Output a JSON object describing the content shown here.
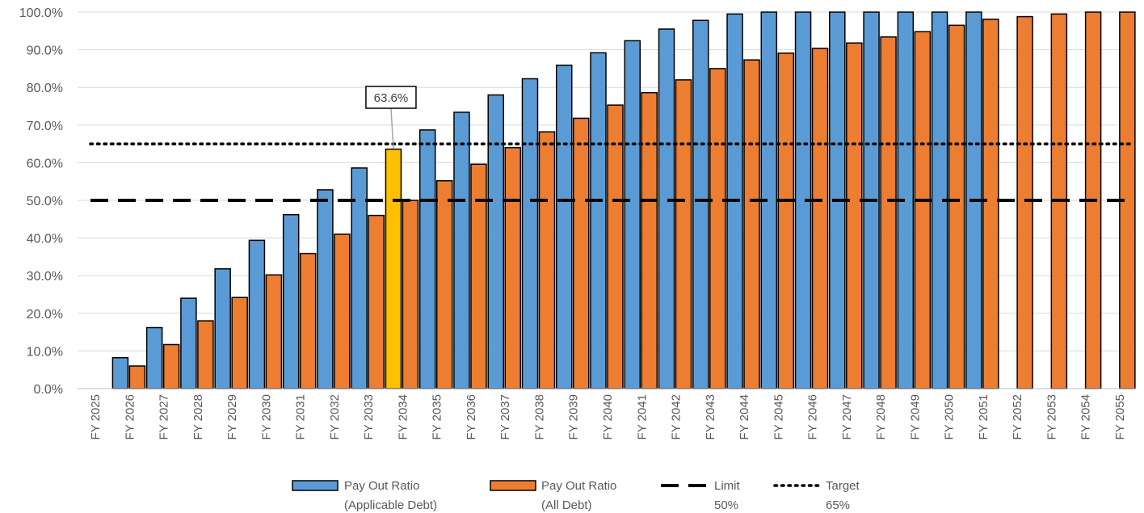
{
  "chart_data": {
    "type": "bar",
    "categories": [
      "FY 2025",
      "FY 2026",
      "FY 2027",
      "FY 2028",
      "FY 2029",
      "FY 2030",
      "FY 2031",
      "FY 2032",
      "FY 2033",
      "FY 2034",
      "FY 2035",
      "FY 2036",
      "FY 2037",
      "FY 2038",
      "FY 2039",
      "FY 2040",
      "FY 2041",
      "FY 2042",
      "FY 2043",
      "FY 2044",
      "FY 2045",
      "FY 2046",
      "FY 2047",
      "FY 2048",
      "FY 2049",
      "FY 2050",
      "FY 2051",
      "FY 2052",
      "FY 2053",
      "FY 2054",
      "FY 2055"
    ],
    "series": [
      {
        "name": "Pay Out Ratio (Applicable Debt)",
        "legend_lines": [
          "Pay Out Ratio",
          "(Applicable Debt)"
        ],
        "color": "#5B9BD5",
        "values": [
          null,
          8.2,
          16.2,
          24.0,
          31.8,
          39.4,
          46.2,
          52.8,
          58.6,
          63.6,
          68.7,
          73.4,
          78.0,
          82.3,
          85.9,
          89.2,
          92.4,
          95.5,
          97.8,
          99.5,
          100.0,
          100.0,
          100.0,
          100.0,
          100.0,
          100.0,
          100.0,
          null,
          null,
          null,
          null
        ],
        "highlight": {
          "index": 9,
          "color": "#FFC000"
        }
      },
      {
        "name": "Pay Out Ratio (All Debt)",
        "legend_lines": [
          "Pay Out Ratio",
          "(All Debt)"
        ],
        "color": "#ED7D31",
        "values": [
          null,
          6.0,
          11.7,
          18.0,
          24.2,
          30.2,
          35.9,
          41.0,
          46.0,
          50.0,
          55.2,
          59.6,
          64.0,
          68.2,
          71.8,
          75.3,
          78.6,
          82.0,
          85.0,
          87.3,
          89.1,
          90.4,
          91.8,
          93.4,
          94.8,
          96.5,
          98.1,
          98.8,
          99.5,
          100.0,
          100.0
        ]
      }
    ],
    "reference_lines": [
      {
        "name": "Limit",
        "legend_lines": [
          "Limit",
          "50%"
        ],
        "value": 50,
        "style": "dashed",
        "color": "#000000"
      },
      {
        "name": "Target",
        "legend_lines": [
          "Target",
          "65%"
        ],
        "value": 65,
        "style": "dotted",
        "color": "#000000"
      }
    ],
    "annotations": [
      {
        "text": "63.6%",
        "category": "FY 2034",
        "series": 0,
        "value": 63.6
      }
    ],
    "ylim": [
      0,
      100
    ],
    "yticks": [
      0,
      10,
      20,
      30,
      40,
      50,
      60,
      70,
      80,
      90,
      100
    ],
    "ytick_format": "%.1f%",
    "grid": true,
    "legend_position": "bottom",
    "title": "",
    "xlabel": "",
    "ylabel": ""
  }
}
